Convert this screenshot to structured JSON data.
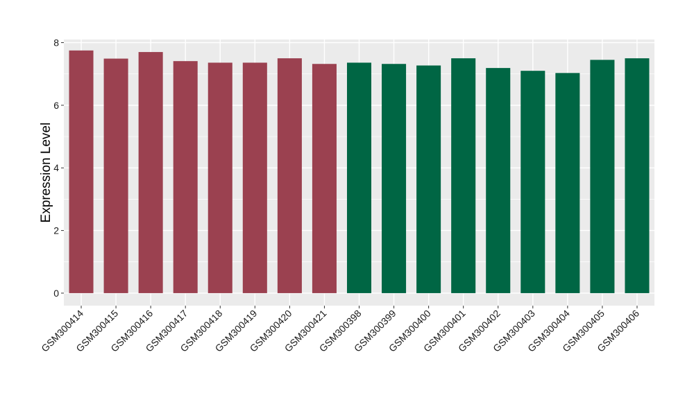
{
  "chart_data": {
    "type": "bar",
    "title": "",
    "xlabel": "",
    "ylabel": "Expression Level",
    "ylim": [
      -0.4,
      8.1
    ],
    "yticks": [
      0,
      2,
      4,
      6,
      8
    ],
    "grid": true,
    "legend": "none",
    "categories": [
      "GSM300414",
      "GSM300415",
      "GSM300416",
      "GSM300417",
      "GSM300418",
      "GSM300419",
      "GSM300420",
      "GSM300421",
      "GSM300398",
      "GSM300399",
      "GSM300400",
      "GSM300401",
      "GSM300402",
      "GSM300403",
      "GSM300404",
      "GSM300405",
      "GSM300406"
    ],
    "values": [
      7.75,
      7.49,
      7.7,
      7.41,
      7.36,
      7.36,
      7.5,
      7.32,
      7.36,
      7.32,
      7.27,
      7.5,
      7.19,
      7.1,
      7.03,
      7.45,
      7.5
    ],
    "colors": [
      "#9b4150",
      "#9b4150",
      "#9b4150",
      "#9b4150",
      "#9b4150",
      "#9b4150",
      "#9b4150",
      "#9b4150",
      "#006644",
      "#006644",
      "#006644",
      "#006644",
      "#006644",
      "#006644",
      "#006644",
      "#006644",
      "#006644"
    ],
    "panel_background": "#ebebeb",
    "gridline_color": "#ffffff"
  }
}
